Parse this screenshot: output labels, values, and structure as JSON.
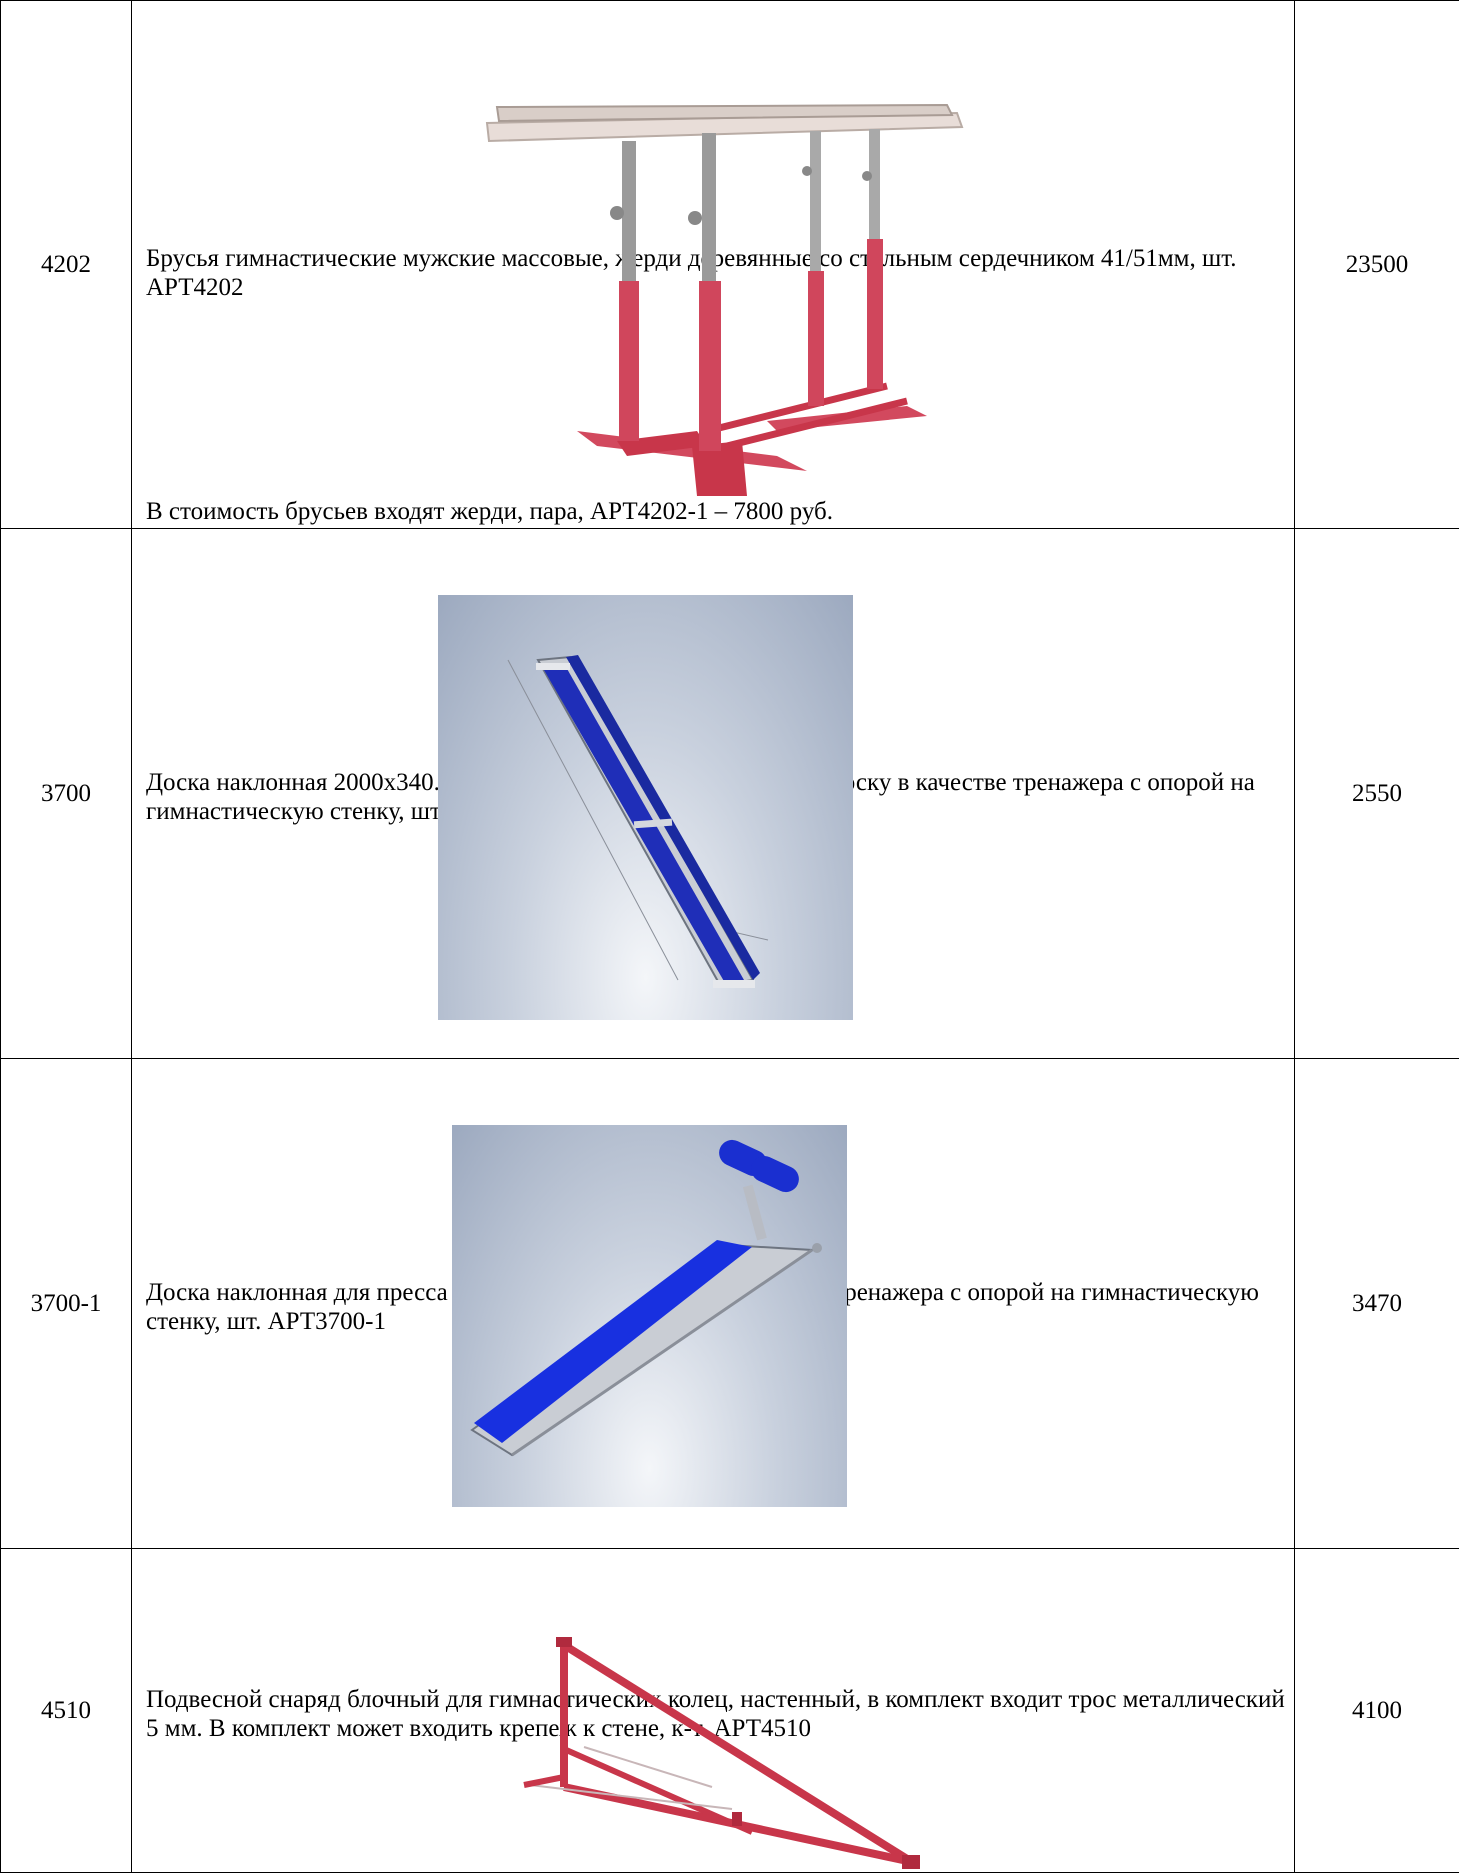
{
  "rows": [
    {
      "code": "4202",
      "description": "Брусья гимнастические мужские массовые, жерди деревянные со стальным сердечником 41/51мм, шт. АРТ4202",
      "note": "В стоимость брусьев входят жерди, пара, АРТ4202-1 – 7800 руб.",
      "price": "23500",
      "image": "parallel-bars-image"
    },
    {
      "code": "3700",
      "description": "Доска наклонная 2000х340. Два крюка позволяют использовать доску в качестве тренажера с опорой на гимнастическую стенку, шт. АРТ3700",
      "price": "2550",
      "image": "incline-board-image"
    },
    {
      "code": "3700-1",
      "description": "Доска наклонная для пресса 2000х340. Используется в качестве тренажера с опорой на гимнастическую стенку, шт. АРТ3700-1",
      "price": "3470",
      "image": "ab-board-image"
    },
    {
      "code": "4510",
      "description": "Подвесной снаряд блочный для гимнастических колец, настенный, в комплект входит трос металлический 5 мм. В комплект может входить крепеж к стене, к-т. АРТ4510",
      "price": "4100",
      "image": "wall-ring-mount-image"
    }
  ],
  "colors": {
    "frame_red": "#c8364a",
    "pad_blue": "#1a2fd0",
    "border": "#000000"
  }
}
